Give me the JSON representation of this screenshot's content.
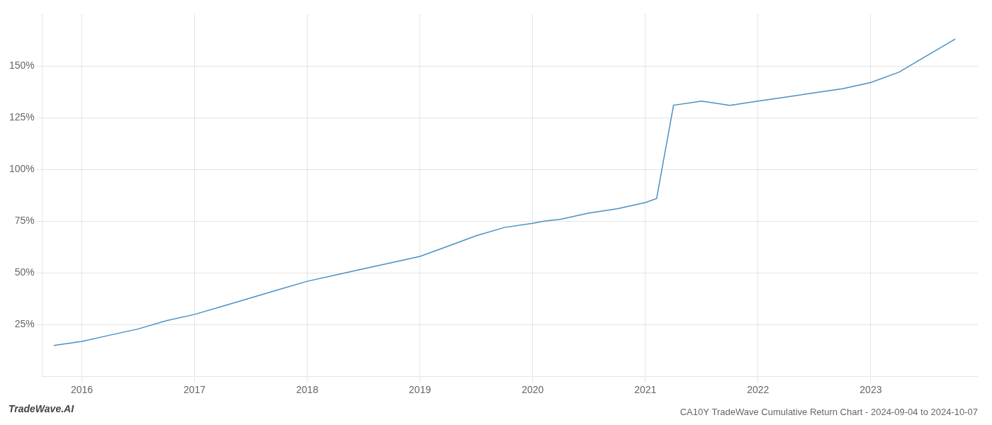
{
  "chart_data": {
    "type": "line",
    "title": "CA10Y TradeWave Cumulative Return Chart - 2024-09-04 to 2024-10-07",
    "annotations": [
      "TradeWave.AI"
    ],
    "x": [
      2015.75,
      2016.0,
      2016.25,
      2016.5,
      2016.75,
      2017.0,
      2017.25,
      2017.5,
      2017.75,
      2018.0,
      2018.25,
      2018.5,
      2018.75,
      2019.0,
      2019.25,
      2019.5,
      2019.75,
      2020.0,
      2020.1,
      2020.25,
      2020.5,
      2020.75,
      2021.0,
      2021.1,
      2021.25,
      2021.5,
      2021.75,
      2022.0,
      2022.25,
      2022.5,
      2022.75,
      2023.0,
      2023.25,
      2023.5,
      2023.75
    ],
    "values": [
      15,
      17,
      20,
      23,
      27,
      30,
      34,
      38,
      42,
      46,
      49,
      52,
      55,
      58,
      63,
      68,
      72,
      74,
      75,
      76,
      79,
      81,
      84,
      86,
      131,
      133,
      131,
      133,
      135,
      137,
      139,
      142,
      147,
      155,
      163
    ],
    "color": "#4a90c4",
    "xlim": [
      2015.65,
      2023.95
    ],
    "ylim": [
      0,
      175
    ],
    "xticks": [
      2016,
      2017,
      2018,
      2019,
      2020,
      2021,
      2022,
      2023
    ],
    "yticks": [
      {
        "value": 25,
        "label": "25%"
      },
      {
        "value": 50,
        "label": "50%"
      },
      {
        "value": 75,
        "label": "75%"
      },
      {
        "value": 100,
        "label": "100%"
      },
      {
        "value": 125,
        "label": "125%"
      },
      {
        "value": 150,
        "label": "150%"
      }
    ],
    "grid": true
  }
}
